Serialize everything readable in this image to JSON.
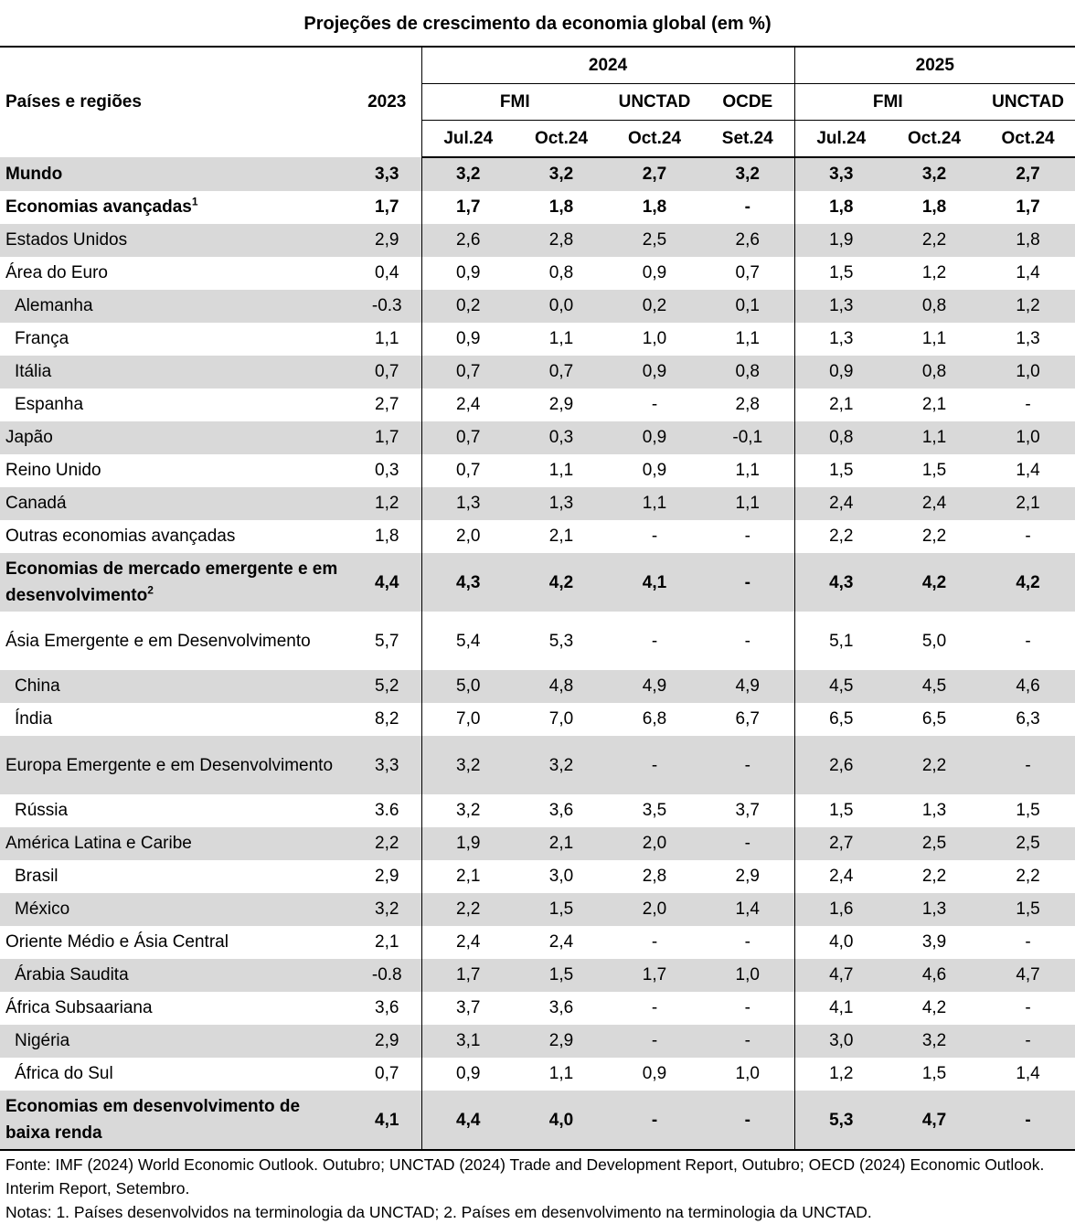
{
  "title": "Projeções de crescimento da economia global (em %)",
  "header": {
    "label_col": "Países e regiões",
    "year_base": "2023",
    "year_a": "2024",
    "year_b": "2025",
    "fmi": "FMI",
    "unctad": "UNCTAD",
    "ocde": "OCDE",
    "subcols": [
      "Jul.24",
      "Oct.24",
      "Oct.24",
      "Set.24",
      "Jul.24",
      "Oct.24",
      "Oct.24"
    ]
  },
  "rows": [
    {
      "name": "Mundo",
      "sup": "",
      "values": [
        "3,3",
        "3,2",
        "3,2",
        "2,7",
        "3,2",
        "3,3",
        "3,2",
        "2,7"
      ]
    },
    {
      "name": "Economias avançadas",
      "sup": "1",
      "values": [
        "1,7",
        "1,7",
        "1,8",
        "1,8",
        "-",
        "1,8",
        "1,8",
        "1,7"
      ]
    },
    {
      "name": "Estados Unidos",
      "sup": "",
      "values": [
        "2,9",
        "2,6",
        "2,8",
        "2,5",
        "2,6",
        "1,9",
        "2,2",
        "1,8"
      ]
    },
    {
      "name": "Área do Euro",
      "sup": "",
      "values": [
        "0,4",
        "0,9",
        "0,8",
        "0,9",
        "0,7",
        "1,5",
        "1,2",
        "1,4"
      ]
    },
    {
      "name": "Alemanha",
      "sup": "",
      "values": [
        "-0.3",
        "0,2",
        "0,0",
        "0,2",
        "0,1",
        "1,3",
        "0,8",
        "1,2"
      ]
    },
    {
      "name": "França",
      "sup": "",
      "values": [
        "1,1",
        "0,9",
        "1,1",
        "1,0",
        "1,1",
        "1,3",
        "1,1",
        "1,3"
      ]
    },
    {
      "name": "Itália",
      "sup": "",
      "values": [
        "0,7",
        "0,7",
        "0,7",
        "0,9",
        "0,8",
        "0,9",
        "0,8",
        "1,0"
      ]
    },
    {
      "name": "Espanha",
      "sup": "",
      "values": [
        "2,7",
        "2,4",
        "2,9",
        "-",
        "2,8",
        "2,1",
        "2,1",
        "-"
      ]
    },
    {
      "name": "Japão",
      "sup": "",
      "values": [
        "1,7",
        "0,7",
        "0,3",
        "0,9",
        "-0,1",
        "0,8",
        "1,1",
        "1,0"
      ]
    },
    {
      "name": "Reino Unido",
      "sup": "",
      "values": [
        "0,3",
        "0,7",
        "1,1",
        "0,9",
        "1,1",
        "1,5",
        "1,5",
        "1,4"
      ]
    },
    {
      "name": "Canadá",
      "sup": "",
      "values": [
        "1,2",
        "1,3",
        "1,3",
        "1,1",
        "1,1",
        "2,4",
        "2,4",
        "2,1"
      ]
    },
    {
      "name": "Outras economias avançadas",
      "sup": "",
      "values": [
        "1,8",
        "2,0",
        "2,1",
        "-",
        "-",
        "2,2",
        "2,2",
        "-"
      ]
    },
    {
      "name": "Economias de mercado emergente e em desenvolvimento",
      "sup": "2",
      "values": [
        "4,4",
        "4,3",
        "4,2",
        "4,1",
        "-",
        "4,3",
        "4,2",
        "4,2"
      ]
    },
    {
      "name": "Ásia Emergente e em Desenvolvimento",
      "sup": "",
      "values": [
        "5,7",
        "5,4",
        "5,3",
        "-",
        "-",
        "5,1",
        "5,0",
        "-"
      ]
    },
    {
      "name": "China",
      "sup": "",
      "values": [
        "5,2",
        "5,0",
        "4,8",
        "4,9",
        "4,9",
        "4,5",
        "4,5",
        "4,6"
      ]
    },
    {
      "name": "Índia",
      "sup": "",
      "values": [
        "8,2",
        "7,0",
        "7,0",
        "6,8",
        "6,7",
        "6,5",
        "6,5",
        "6,3"
      ]
    },
    {
      "name": "Europa Emergente e em Desenvolvimento",
      "sup": "",
      "values": [
        "3,3",
        "3,2",
        "3,2",
        "-",
        "-",
        "2,6",
        "2,2",
        "-"
      ]
    },
    {
      "name": "Rússia",
      "sup": "",
      "values": [
        "3.6",
        "3,2",
        "3,6",
        "3,5",
        "3,7",
        "1,5",
        "1,3",
        "1,5"
      ]
    },
    {
      "name": "América Latina e Caribe",
      "sup": "",
      "values": [
        "2,2",
        "1,9",
        "2,1",
        "2,0",
        "-",
        "2,7",
        "2,5",
        "2,5"
      ]
    },
    {
      "name": "Brasil",
      "sup": "",
      "values": [
        "2,9",
        "2,1",
        "3,0",
        "2,8",
        "2,9",
        "2,4",
        "2,2",
        "2,2"
      ]
    },
    {
      "name": "México",
      "sup": "",
      "values": [
        "3,2",
        "2,2",
        "1,5",
        "2,0",
        "1,4",
        "1,6",
        "1,3",
        "1,5"
      ]
    },
    {
      "name": "Oriente Médio e Ásia Central",
      "sup": "",
      "values": [
        "2,1",
        "2,4",
        "2,4",
        "-",
        "-",
        "4,0",
        "3,9",
        "-"
      ]
    },
    {
      "name": "Árabia Saudita",
      "sup": "",
      "values": [
        "-0.8",
        "1,7",
        "1,5",
        "1,7",
        "1,0",
        "4,7",
        "4,6",
        "4,7"
      ]
    },
    {
      "name": "África Subsaariana",
      "sup": "",
      "values": [
        "3,6",
        "3,7",
        "3,6",
        "-",
        "-",
        "4,1",
        "4,2",
        "-"
      ]
    },
    {
      "name": "Nigéria",
      "sup": "",
      "values": [
        "2,9",
        "3,1",
        "2,9",
        "-",
        "-",
        "3,0",
        "3,2",
        "-"
      ]
    },
    {
      "name": "África do Sul",
      "sup": "",
      "values": [
        "0,7",
        "0,9",
        "1,1",
        "0,9",
        "1,0",
        "1,2",
        "1,5",
        "1,4"
      ]
    },
    {
      "name": "Economias em desenvolvimento de baixa renda",
      "sup": "",
      "values": [
        "4,1",
        "4,4",
        "4,0",
        "-",
        "-",
        "5,3",
        "4,7",
        "-"
      ]
    }
  ],
  "source": "Fonte: IMF (2024) World Economic Outlook. Outubro; UNCTAD (2024) Trade and Development Report, Outubro; OECD (2024) Economic Outlook. Interim Report, Setembro.",
  "notes": "Notas: 1. Países desenvolvidos na terminologia da UNCTAD; 2. Países em desenvolvimento na terminologia da UNCTAD."
}
